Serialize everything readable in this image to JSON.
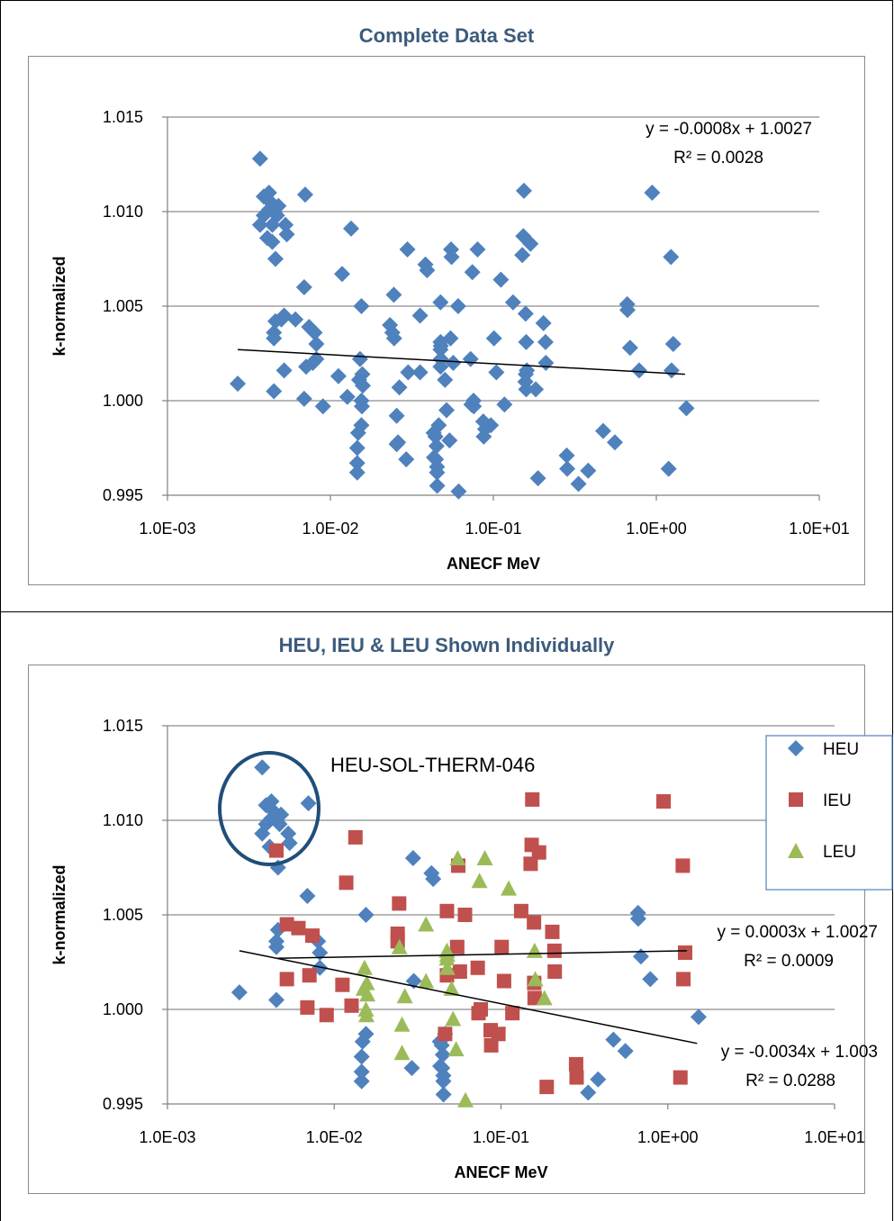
{
  "chart_data": [
    {
      "type": "scatter",
      "title": "Complete Data Set",
      "xlabel": "ANECF MeV",
      "ylabel": "k-normalized",
      "xscale": "log",
      "xlim": [
        0.001,
        10
      ],
      "ylim": [
        0.995,
        1.015
      ],
      "x_ticks": [
        "1.0E-03",
        "1.0E-02",
        "1.0E-01",
        "1.0E+00",
        "1.0E+01"
      ],
      "y_ticks": [
        "0.995",
        "1.000",
        "1.005",
        "1.010",
        "1.015"
      ],
      "grid": "horizontal",
      "marker": "diamond",
      "color": "#4F81BD",
      "trendline": {
        "x": [
          0.0027,
          1.5
        ],
        "y": [
          1.0027,
          1.0014
        ],
        "color": "#000000"
      },
      "equation": [
        "y = -0.0008x + 1.0027",
        "R² = 0.0028"
      ],
      "points": [
        [
          0.0027,
          1.0009
        ],
        [
          0.0037,
          1.0128
        ],
        [
          0.0037,
          1.0093
        ],
        [
          0.0039,
          1.0098
        ],
        [
          0.0039,
          1.0108
        ],
        [
          0.0041,
          1.0086
        ],
        [
          0.0042,
          1.011
        ],
        [
          0.0042,
          1.0101
        ],
        [
          0.0043,
          1.0105
        ],
        [
          0.0044,
          1.0084
        ],
        [
          0.0044,
          1.0093
        ],
        [
          0.0045,
          1.0036
        ],
        [
          0.0045,
          1.0033
        ],
        [
          0.0045,
          1.0005
        ],
        [
          0.0046,
          1.0042
        ],
        [
          0.0046,
          1.0075
        ],
        [
          0.0047,
          1.0098
        ],
        [
          0.0048,
          1.0103
        ],
        [
          0.005,
          1.0043
        ],
        [
          0.0052,
          1.0016
        ],
        [
          0.0052,
          1.0045
        ],
        [
          0.0053,
          1.0093
        ],
        [
          0.0054,
          1.0088
        ],
        [
          0.0061,
          1.0043
        ],
        [
          0.0069,
          1.0001
        ],
        [
          0.0069,
          1.006
        ],
        [
          0.007,
          1.0109
        ],
        [
          0.0071,
          1.0018
        ],
        [
          0.0074,
          1.0039
        ],
        [
          0.0078,
          1.002
        ],
        [
          0.008,
          1.0036
        ],
        [
          0.0082,
          1.0022
        ],
        [
          0.0082,
          1.003
        ],
        [
          0.009,
          0.9997
        ],
        [
          0.0112,
          1.0013
        ],
        [
          0.0118,
          1.0067
        ],
        [
          0.0127,
          1.0002
        ],
        [
          0.0134,
          1.0091
        ],
        [
          0.0146,
          0.9967
        ],
        [
          0.0146,
          0.9962
        ],
        [
          0.0146,
          0.9975
        ],
        [
          0.0148,
          0.9983
        ],
        [
          0.015,
          1.0011
        ],
        [
          0.0152,
          1.0022
        ],
        [
          0.0155,
          1.005
        ],
        [
          0.0155,
          0.9987
        ],
        [
          0.0155,
          1.0
        ],
        [
          0.0156,
          0.9997
        ],
        [
          0.0157,
          1.0014
        ],
        [
          0.0158,
          1.0008
        ],
        [
          0.0232,
          1.004
        ],
        [
          0.024,
          1.0036
        ],
        [
          0.0245,
          1.0056
        ],
        [
          0.0246,
          1.0033
        ],
        [
          0.0255,
          0.9977
        ],
        [
          0.0255,
          0.9992
        ],
        [
          0.026,
          0.9978
        ],
        [
          0.0265,
          1.0007
        ],
        [
          0.0292,
          0.9969
        ],
        [
          0.0297,
          1.008
        ],
        [
          0.03,
          1.0015
        ],
        [
          0.0355,
          1.0045
        ],
        [
          0.0355,
          1.0015
        ],
        [
          0.0383,
          1.0072
        ],
        [
          0.0392,
          1.0069
        ],
        [
          0.043,
          0.9983
        ],
        [
          0.0432,
          0.997
        ],
        [
          0.0441,
          0.9981
        ],
        [
          0.0444,
          0.9969
        ],
        [
          0.0448,
          0.9976
        ],
        [
          0.0451,
          0.9965
        ],
        [
          0.0451,
          0.9962
        ],
        [
          0.0452,
          0.9955
        ],
        [
          0.0462,
          0.9987
        ],
        [
          0.0474,
          1.0052
        ],
        [
          0.0474,
          1.0031
        ],
        [
          0.0474,
          1.0027
        ],
        [
          0.0474,
          1.0018
        ],
        [
          0.0476,
          1.0029
        ],
        [
          0.0476,
          1.0022
        ],
        [
          0.0505,
          1.0011
        ],
        [
          0.0516,
          0.9995
        ],
        [
          0.0538,
          0.9979
        ],
        [
          0.0546,
          1.0033
        ],
        [
          0.055,
          1.008
        ],
        [
          0.0554,
          1.0076
        ],
        [
          0.0567,
          1.002
        ],
        [
          0.0608,
          1.005
        ],
        [
          0.0612,
          0.9952
        ],
        [
          0.0725,
          1.0022
        ],
        [
          0.0733,
          0.9998
        ],
        [
          0.0743,
          1.0068
        ],
        [
          0.0756,
          1.0
        ],
        [
          0.0758,
          0.9997
        ],
        [
          0.08,
          1.008
        ],
        [
          0.0867,
          0.9989
        ],
        [
          0.0873,
          0.9981
        ],
        [
          0.089,
          0.9985
        ],
        [
          0.0965,
          0.9987
        ],
        [
          0.1009,
          1.0033
        ],
        [
          0.1043,
          1.0015
        ],
        [
          0.1112,
          1.0064
        ],
        [
          0.117,
          0.9998
        ],
        [
          0.1321,
          1.0052
        ],
        [
          0.1505,
          1.0077
        ],
        [
          0.1527,
          1.0087
        ],
        [
          0.154,
          1.0111
        ],
        [
          0.1573,
          1.001
        ],
        [
          0.1577,
          1.0046
        ],
        [
          0.1581,
          1.0014
        ],
        [
          0.159,
          1.0031
        ],
        [
          0.159,
          1.0006
        ],
        [
          0.1605,
          1.0016
        ],
        [
          0.169,
          1.0083
        ],
        [
          0.182,
          1.0006
        ],
        [
          0.1879,
          0.9959
        ],
        [
          0.203,
          1.0041
        ],
        [
          0.209,
          1.0031
        ],
        [
          0.21,
          1.002
        ],
        [
          0.282,
          0.9971
        ],
        [
          0.284,
          0.9964
        ],
        [
          0.333,
          0.9956
        ],
        [
          0.382,
          0.9963
        ],
        [
          0.472,
          0.9984
        ],
        [
          0.557,
          0.9978
        ],
        [
          0.663,
          1.0051
        ],
        [
          0.665,
          1.0048
        ],
        [
          0.69,
          1.0028
        ],
        [
          0.785,
          1.0016
        ],
        [
          0.943,
          1.011
        ],
        [
          1.19,
          0.9964
        ],
        [
          1.23,
          1.0076
        ],
        [
          1.24,
          1.0016
        ],
        [
          1.27,
          1.003
        ],
        [
          1.53,
          0.9996
        ]
      ]
    },
    {
      "type": "scatter",
      "title": "HEU, IEU & LEU Shown Individually",
      "xlabel": "ANECF MeV",
      "ylabel": "k-normalized",
      "xscale": "log",
      "xlim": [
        0.001,
        10
      ],
      "ylim": [
        0.995,
        1.015
      ],
      "x_ticks": [
        "1.0E-03",
        "1.0E-02",
        "1.0E-01",
        "1.0E+00",
        "1.0E+01"
      ],
      "y_ticks": [
        "0.995",
        "1.000",
        "1.005",
        "1.010",
        "1.015"
      ],
      "grid": "horizontal",
      "legend": "right",
      "annotation": "HEU-SOL-THERM-046",
      "series": [
        {
          "name": "HEU",
          "marker": "diamond",
          "color": "#4F81BD",
          "points": [
            [
              0.0027,
              1.0009
            ],
            [
              0.0037,
              1.0128
            ],
            [
              0.0037,
              1.0093
            ],
            [
              0.0039,
              1.0098
            ],
            [
              0.0039,
              1.0108
            ],
            [
              0.0041,
              1.0086
            ],
            [
              0.0042,
              1.011
            ],
            [
              0.0042,
              1.0101
            ],
            [
              0.0043,
              1.0105
            ],
            [
              0.0046,
              1.0075
            ],
            [
              0.0047,
              1.0098
            ],
            [
              0.0048,
              1.0103
            ],
            [
              0.0053,
              1.0093
            ],
            [
              0.0054,
              1.0088
            ],
            [
              0.007,
              1.0109
            ],
            [
              0.0045,
              1.0036
            ],
            [
              0.0045,
              1.0033
            ],
            [
              0.0045,
              1.0005
            ],
            [
              0.0046,
              1.0042
            ],
            [
              0.0069,
              1.006
            ],
            [
              0.0082,
              1.003
            ],
            [
              0.0082,
              1.0022
            ],
            [
              0.008,
              1.0036
            ],
            [
              0.0155,
              1.005
            ],
            [
              0.0146,
              0.9967
            ],
            [
              0.0146,
              0.9962
            ],
            [
              0.0146,
              0.9975
            ],
            [
              0.0148,
              0.9983
            ],
            [
              0.0155,
              0.9987
            ],
            [
              0.0297,
              1.008
            ],
            [
              0.03,
              1.0015
            ],
            [
              0.0292,
              0.9969
            ],
            [
              0.0383,
              1.0072
            ],
            [
              0.0392,
              1.0069
            ],
            [
              0.043,
              0.9983
            ],
            [
              0.0432,
              0.997
            ],
            [
              0.0441,
              0.9981
            ],
            [
              0.0444,
              0.9969
            ],
            [
              0.0448,
              0.9976
            ],
            [
              0.0451,
              0.9965
            ],
            [
              0.0451,
              0.9962
            ],
            [
              0.0452,
              0.9955
            ],
            [
              0.0462,
              0.9987
            ],
            [
              0.333,
              0.9956
            ],
            [
              0.382,
              0.9963
            ],
            [
              0.472,
              0.9984
            ],
            [
              0.557,
              0.9978
            ],
            [
              0.663,
              1.0051
            ],
            [
              0.665,
              1.0048
            ],
            [
              0.69,
              1.0028
            ],
            [
              0.785,
              1.0016
            ],
            [
              1.53,
              0.9996
            ]
          ],
          "trendline": {
            "x": [
              0.0027,
              1.5
            ],
            "y": [
              1.0031,
              0.9982
            ]
          },
          "equation": [
            "y = -0.0034x + 1.003",
            "R² = 0.0288"
          ]
        },
        {
          "name": "IEU",
          "marker": "square",
          "color": "#C0504D",
          "points": [
            [
              0.0045,
              1.0084
            ],
            [
              0.0052,
              1.0016
            ],
            [
              0.0052,
              1.0045
            ],
            [
              0.0061,
              1.0043
            ],
            [
              0.0069,
              1.0001
            ],
            [
              0.0071,
              1.0018
            ],
            [
              0.0074,
              1.0039
            ],
            [
              0.009,
              0.9997
            ],
            [
              0.0112,
              1.0013
            ],
            [
              0.0118,
              1.0067
            ],
            [
              0.0127,
              1.0002
            ],
            [
              0.0134,
              1.0091
            ],
            [
              0.024,
              1.0036
            ],
            [
              0.0245,
              1.0056
            ],
            [
              0.024,
              1.004
            ],
            [
              0.0474,
              1.0052
            ],
            [
              0.0474,
              1.0018
            ],
            [
              0.0462,
              0.9987
            ],
            [
              0.0546,
              1.0033
            ],
            [
              0.0554,
              1.0076
            ],
            [
              0.0567,
              1.002
            ],
            [
              0.0608,
              1.005
            ],
            [
              0.0725,
              1.0022
            ],
            [
              0.0733,
              0.9998
            ],
            [
              0.0756,
              1.0
            ],
            [
              0.0867,
              0.9989
            ],
            [
              0.0873,
              0.9981
            ],
            [
              0.0965,
              0.9987
            ],
            [
              0.1009,
              1.0033
            ],
            [
              0.1043,
              1.0015
            ],
            [
              0.117,
              0.9998
            ],
            [
              0.1321,
              1.0052
            ],
            [
              0.1505,
              1.0077
            ],
            [
              0.1527,
              1.0087
            ],
            [
              0.154,
              1.0111
            ],
            [
              0.1577,
              1.0046
            ],
            [
              0.1581,
              1.0014
            ],
            [
              0.159,
              1.0006
            ],
            [
              0.169,
              1.0083
            ],
            [
              0.1879,
              0.9959
            ],
            [
              0.203,
              1.0041
            ],
            [
              0.209,
              1.0031
            ],
            [
              0.21,
              1.002
            ],
            [
              0.282,
              0.9971
            ],
            [
              0.284,
              0.9964
            ],
            [
              0.943,
              1.011
            ],
            [
              1.19,
              0.9964
            ],
            [
              1.23,
              1.0076
            ],
            [
              1.24,
              1.0016
            ],
            [
              1.27,
              1.003
            ]
          ],
          "trendline": {
            "x": [
              0.0045,
              1.3
            ],
            "y": [
              1.0027,
              1.0031
            ]
          },
          "equation": [
            "y = 0.0003x + 1.0027",
            "R² = 0.0009"
          ]
        },
        {
          "name": "LEU",
          "marker": "triangle",
          "color": "#9BBB59",
          "points": [
            [
              0.015,
              1.0011
            ],
            [
              0.0152,
              1.0022
            ],
            [
              0.0155,
              1.0
            ],
            [
              0.0156,
              0.9997
            ],
            [
              0.0157,
              1.0014
            ],
            [
              0.0158,
              1.0008
            ],
            [
              0.0246,
              1.0033
            ],
            [
              0.0255,
              0.9977
            ],
            [
              0.0255,
              0.9992
            ],
            [
              0.0265,
              1.0007
            ],
            [
              0.0355,
              1.0045
            ],
            [
              0.0355,
              1.0015
            ],
            [
              0.0474,
              1.0031
            ],
            [
              0.0474,
              1.0027
            ],
            [
              0.0476,
              1.0029
            ],
            [
              0.0476,
              1.0022
            ],
            [
              0.0505,
              1.0011
            ],
            [
              0.0516,
              0.9995
            ],
            [
              0.0538,
              0.9979
            ],
            [
              0.055,
              1.008
            ],
            [
              0.0612,
              0.9952
            ],
            [
              0.0743,
              1.0068
            ],
            [
              0.08,
              1.008
            ],
            [
              0.1112,
              1.0064
            ],
            [
              0.159,
              1.0031
            ],
            [
              0.1605,
              1.0016
            ],
            [
              0.182,
              1.0006
            ]
          ]
        }
      ]
    }
  ]
}
